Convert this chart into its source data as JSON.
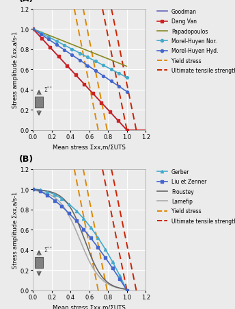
{
  "xlabel": "Mean stress Σxx,m/ΣUTS",
  "ylabel": "Stress amplitude Σxx,a/s-1",
  "xlim": [
    0,
    1.2
  ],
  "ylim": [
    0,
    1.2
  ],
  "xticks": [
    0,
    0.2,
    0.4,
    0.6,
    0.8,
    1.0,
    1.2
  ],
  "yticks": [
    0,
    0.2,
    0.4,
    0.6,
    0.8,
    1.0,
    1.2
  ],
  "goodman_color": "#6666bb",
  "goodman_label": "Goodman",
  "dangvan_color": "#cc2222",
  "dangvan_label": "Dang Van",
  "papa_color": "#888822",
  "papa_label": "Papadopoulos",
  "morel_nor_color": "#44aacc",
  "morel_nor_label": "Morel-Huyen Nor.",
  "morel_hyd_color": "#4466cc",
  "morel_hyd_label": "Morel-Huyen Hyd.",
  "yield_color": "#dd8800",
  "yield_label": "Yield stress",
  "uts_color": "#cc2200",
  "uts_label": "Ultimate tensile strength",
  "gerber_color": "#44aacc",
  "gerber_label": "Gerber",
  "liu_color": "#4466cc",
  "liu_label": "Liu et Zenner",
  "froustey_color": "#666666",
  "froustey_label": "Froustey",
  "lamefip_color": "#aaaaaa",
  "lamefip_label": "Lamefip",
  "yield_lines": [
    [
      0.44,
      1.2,
      0.695,
      0.0
    ],
    [
      0.535,
      1.2,
      0.79,
      0.0
    ]
  ],
  "uts_lines": [
    [
      0.74,
      1.2,
      1.0,
      0.0
    ],
    [
      0.835,
      1.2,
      1.1,
      0.0
    ]
  ],
  "bg_color": "#ebebeb",
  "figsize": [
    3.44,
    4.52
  ],
  "dpi": 100
}
